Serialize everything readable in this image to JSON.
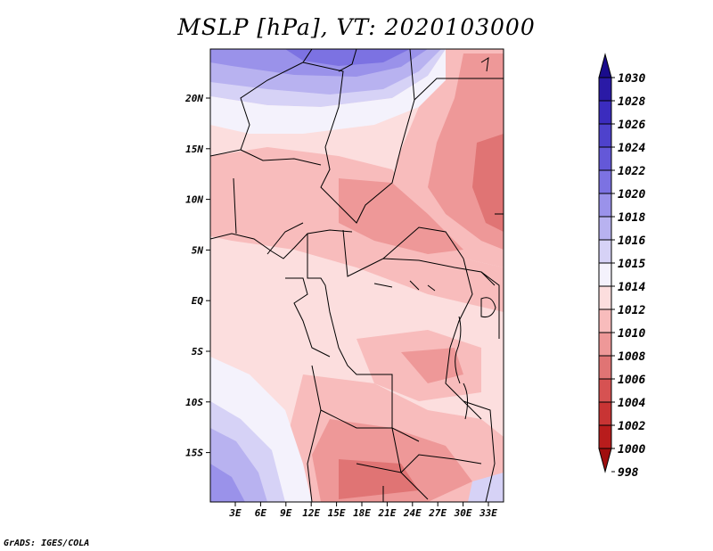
{
  "title": "MSLP [hPa], VT: 2020103000",
  "credit": "GrADS: IGES/COLA",
  "map": {
    "lat_labels": [
      "20N",
      "15N",
      "10N",
      "5N",
      "EQ",
      "5S",
      "10S",
      "15S"
    ],
    "lon_labels": [
      "3E",
      "6E",
      "9E",
      "12E",
      "15E",
      "18E",
      "21E",
      "24E",
      "27E",
      "30E",
      "33E"
    ]
  },
  "colorbar": {
    "levels": [
      "1030",
      "1028",
      "1026",
      "1024",
      "1022",
      "1020",
      "1018",
      "1016",
      "1015",
      "1014",
      "1012",
      "1010",
      "1008",
      "1006",
      "1004",
      "1002",
      "1000",
      "998"
    ],
    "colors": [
      "#1a0c8c",
      "#2a1aa6",
      "#3b2cbe",
      "#4e42cc",
      "#6458d8",
      "#7c72e2",
      "#9a92ea",
      "#b8b2f0",
      "#d6d2f6",
      "#f4f2fc",
      "#fcdede",
      "#f8bcbc",
      "#ee9898",
      "#e07474",
      "#d65252",
      "#c83434",
      "#b81c1c",
      "#a00e0e"
    ]
  }
}
